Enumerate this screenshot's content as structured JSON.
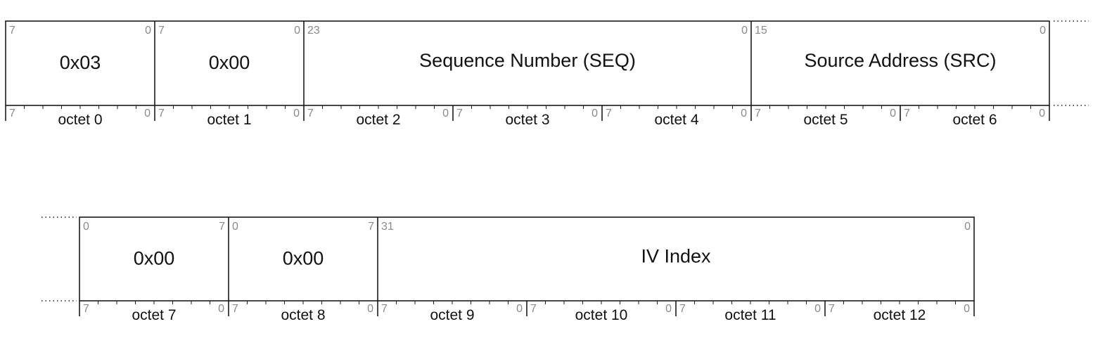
{
  "rows": [
    {
      "continues_right": true,
      "continues_left": false,
      "fields": [
        {
          "label": "0x03",
          "bit_left": "7",
          "bit_right": "0",
          "octets": 1
        },
        {
          "label": "0x00",
          "bit_left": "7",
          "bit_right": "0",
          "octets": 1
        },
        {
          "label": "Sequence Number (SEQ)",
          "bit_left": "23",
          "bit_right": "0",
          "octets": 3
        },
        {
          "label": "Source Address (SRC)",
          "bit_left": "15",
          "bit_right": "0",
          "octets": 2
        }
      ],
      "octets": [
        {
          "label": "octet 0",
          "bit_left": "7",
          "bit_right": "0"
        },
        {
          "label": "octet 1",
          "bit_left": "7",
          "bit_right": "0"
        },
        {
          "label": "octet 2",
          "bit_left": "7",
          "bit_right": "0"
        },
        {
          "label": "octet 3",
          "bit_left": "7",
          "bit_right": "0"
        },
        {
          "label": "octet 4",
          "bit_left": "7",
          "bit_right": "0"
        },
        {
          "label": "octet 5",
          "bit_left": "7",
          "bit_right": "0"
        },
        {
          "label": "octet 6",
          "bit_left": "7",
          "bit_right": "0"
        }
      ]
    },
    {
      "continues_right": false,
      "continues_left": true,
      "fields": [
        {
          "label": "0x00",
          "bit_left": "0",
          "bit_right": "7",
          "octets": 1
        },
        {
          "label": "0x00",
          "bit_left": "0",
          "bit_right": "7",
          "octets": 1
        },
        {
          "label": "IV Index",
          "bit_left": "31",
          "bit_right": "0",
          "octets": 4
        }
      ],
      "octets": [
        {
          "label": "octet 7",
          "bit_left": "7",
          "bit_right": "0"
        },
        {
          "label": "octet 8",
          "bit_left": "7",
          "bit_right": "0"
        },
        {
          "label": "octet 9",
          "bit_left": "7",
          "bit_right": "0"
        },
        {
          "label": "octet 10",
          "bit_left": "7",
          "bit_right": "0"
        },
        {
          "label": "octet 11",
          "bit_left": "7",
          "bit_right": "0"
        },
        {
          "label": "octet 12",
          "bit_left": "7",
          "bit_right": "0"
        }
      ]
    }
  ]
}
